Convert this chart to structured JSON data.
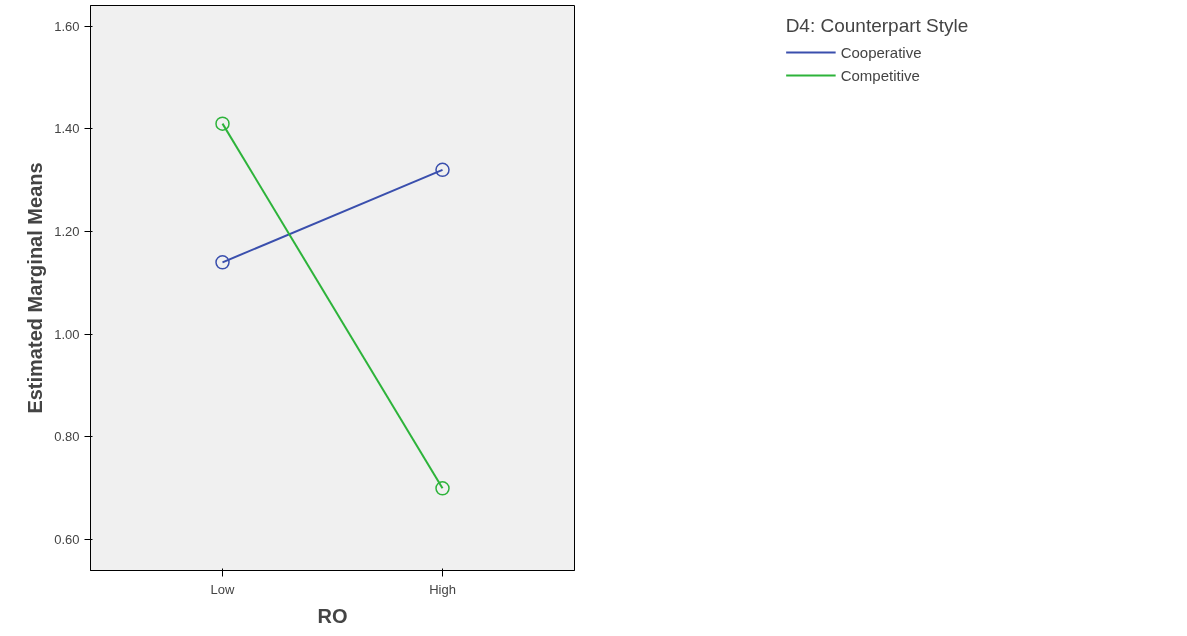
{
  "chart_data": {
    "type": "line",
    "xlabel": "RO",
    "ylabel": "Estimated Marginal Means",
    "legend_title": "D4: Counterpart Style",
    "categories": [
      "Low",
      "High"
    ],
    "series": [
      {
        "name": "Cooperative",
        "color": "#3a4fad",
        "values": [
          1.14,
          1.32
        ]
      },
      {
        "name": "Competitive",
        "color": "#2db33a",
        "values": [
          1.41,
          0.7
        ]
      }
    ],
    "ylim": [
      0.54,
      1.64
    ],
    "yticks": [
      {
        "value": 0.6,
        "label": "0.60"
      },
      {
        "value": 0.8,
        "label": "0.80"
      },
      {
        "value": 1.0,
        "label": "1.00"
      },
      {
        "value": 1.2,
        "label": "1.20"
      },
      {
        "value": 1.4,
        "label": "1.40"
      },
      {
        "value": 1.6,
        "label": "1.60"
      }
    ],
    "grid": false,
    "legend": "right",
    "marker": "circle",
    "line_style": "solid"
  }
}
